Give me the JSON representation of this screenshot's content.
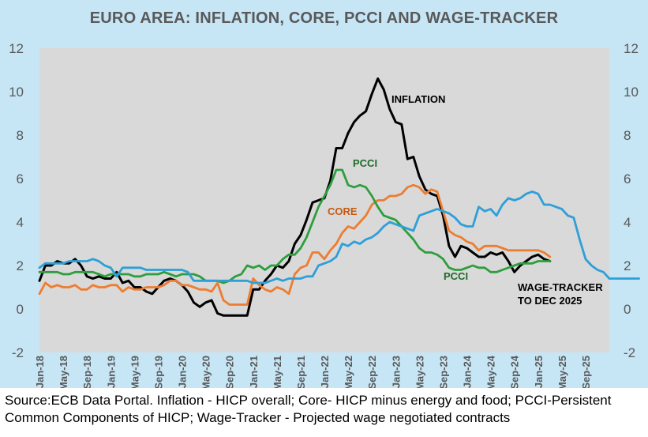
{
  "chart_data": {
    "type": "line",
    "title": "EURO AREA: INFLATION, CORE, PCCI AND WAGE-TRACKER",
    "xlabel": "",
    "ylabel": "",
    "ylim": [
      -2,
      12
    ],
    "y_ticks": [
      -2,
      0,
      2,
      4,
      6,
      8,
      10,
      12
    ],
    "y_tick_labels": [
      "-2",
      "0",
      "2",
      "4",
      "6",
      "8",
      "10",
      "12"
    ],
    "x_tick_labels": [
      "Jan-18",
      "May-18",
      "Sep-18",
      "Jan-19",
      "May-19",
      "Sep-19",
      "Jan-20",
      "May-20",
      "Sep-20",
      "Jan-21",
      "May-21",
      "Sep-21",
      "Jan-22",
      "May-22",
      "Sep-22",
      "Jan-23",
      "May-23",
      "Sep-23",
      "Jan-24",
      "May-24",
      "Sep-24",
      "Jan-25",
      "May-25",
      "Sep-25"
    ],
    "grid": false,
    "colors": {
      "inflation": "#000000",
      "core": "#ed7d31",
      "pcci": "#2e9e3e",
      "wage": "#2e9fd8",
      "plot_bg": "#d9d9d9",
      "frame_bg": "#c6e5f5",
      "title": "#595959",
      "tick": "#595959",
      "core_label": "#c55a11",
      "pcci_label": "#1e6b28"
    },
    "series": [
      {
        "name": "Inflation",
        "key": "inflation",
        "label": "INFLATION",
        "start": "Jan-18",
        "values": [
          1.3,
          2.0,
          2.0,
          2.2,
          2.1,
          2.1,
          2.3,
          2.0,
          1.5,
          1.4,
          1.5,
          1.4,
          1.4,
          1.7,
          1.2,
          1.3,
          1.0,
          1.0,
          0.8,
          0.7,
          1.0,
          1.3,
          1.4,
          1.3,
          1.1,
          0.8,
          0.3,
          0.1,
          0.3,
          0.4,
          -0.2,
          -0.3,
          -0.3,
          -0.3,
          -0.3,
          -0.3,
          0.9,
          0.9,
          1.3,
          1.6,
          2.0,
          1.9,
          2.2,
          3.0,
          3.4,
          4.1,
          4.9,
          5.0,
          5.1,
          5.9,
          7.4,
          7.4,
          8.1,
          8.6,
          8.9,
          9.1,
          9.9,
          10.6,
          10.1,
          9.2,
          8.6,
          8.5,
          6.9,
          7.0,
          6.1,
          5.5,
          5.3,
          5.2,
          4.3,
          2.9,
          2.4,
          2.9,
          2.8,
          2.6,
          2.4,
          2.4,
          2.6,
          2.5,
          2.6,
          2.2,
          1.7,
          2.0,
          2.2,
          2.4,
          2.5,
          2.3,
          2.2
        ]
      },
      {
        "name": "Core",
        "key": "core",
        "label": "CORE",
        "start": "Jan-18",
        "values": [
          0.7,
          1.2,
          1.0,
          1.1,
          1.0,
          1.0,
          1.1,
          0.9,
          0.9,
          1.1,
          1.0,
          1.0,
          1.1,
          1.1,
          0.8,
          1.0,
          0.9,
          0.9,
          1.0,
          1.0,
          1.0,
          1.1,
          1.3,
          1.3,
          1.1,
          1.1,
          1.0,
          0.9,
          0.9,
          0.8,
          1.2,
          0.4,
          0.2,
          0.2,
          0.2,
          0.2,
          1.4,
          1.1,
          0.9,
          0.8,
          1.0,
          0.9,
          0.7,
          1.6,
          1.9,
          2.0,
          2.6,
          2.6,
          2.3,
          2.7,
          3.0,
          3.5,
          3.8,
          3.7,
          4.0,
          4.3,
          4.8,
          5.0,
          5.0,
          5.2,
          5.2,
          5.3,
          5.6,
          5.7,
          5.6,
          5.3,
          5.5,
          5.4,
          4.5,
          3.6,
          3.4,
          3.3,
          3.1,
          3.0,
          2.7,
          2.9,
          2.9,
          2.9,
          2.8,
          2.7,
          2.7,
          2.7,
          2.7,
          2.7,
          2.7,
          2.6,
          2.4
        ]
      },
      {
        "name": "PCCI",
        "key": "pcci",
        "label": "PCCI",
        "start": "Jan-18",
        "values": [
          1.7,
          1.7,
          1.7,
          1.7,
          1.6,
          1.6,
          1.7,
          1.7,
          1.7,
          1.7,
          1.6,
          1.5,
          1.6,
          1.6,
          1.6,
          1.6,
          1.5,
          1.5,
          1.6,
          1.6,
          1.6,
          1.7,
          1.6,
          1.5,
          1.6,
          1.6,
          1.6,
          1.5,
          1.3,
          1.3,
          1.3,
          1.2,
          1.3,
          1.5,
          1.6,
          2.0,
          1.9,
          2.0,
          1.8,
          2.0,
          2.0,
          2.3,
          2.5,
          2.5,
          2.8,
          3.3,
          4.0,
          4.7,
          5.2,
          5.7,
          6.4,
          6.4,
          5.7,
          5.6,
          5.7,
          5.6,
          5.2,
          4.7,
          4.3,
          4.2,
          4.1,
          3.8,
          3.5,
          3.2,
          2.8,
          2.6,
          2.6,
          2.5,
          2.3,
          1.9,
          1.8,
          1.8,
          1.9,
          2.0,
          1.9,
          1.9,
          1.7,
          1.7,
          1.8,
          1.9,
          2.0,
          2.1,
          2.1,
          2.1,
          2.2,
          2.2,
          2.2
        ]
      },
      {
        "name": "Wage-Tracker",
        "key": "wage",
        "label": "WAGE-TRACKER\nTO DEC 2025",
        "start": "Jan-18",
        "values": [
          1.9,
          2.1,
          2.1,
          2.1,
          2.1,
          2.2,
          2.2,
          2.2,
          2.2,
          2.3,
          2.2,
          2.0,
          1.9,
          1.5,
          1.9,
          1.9,
          1.9,
          1.9,
          1.8,
          1.8,
          1.8,
          1.8,
          1.8,
          1.8,
          1.8,
          1.7,
          1.3,
          1.3,
          1.3,
          1.3,
          1.3,
          1.3,
          1.3,
          1.3,
          1.3,
          1.3,
          1.2,
          1.2,
          1.2,
          1.3,
          1.4,
          1.3,
          1.4,
          1.4,
          1.4,
          1.5,
          1.5,
          2.0,
          2.1,
          2.2,
          2.4,
          3.0,
          2.9,
          3.1,
          3.0,
          3.2,
          3.3,
          3.5,
          3.8,
          4.0,
          3.9,
          3.8,
          3.7,
          3.6,
          4.3,
          4.4,
          4.5,
          4.6,
          4.5,
          4.4,
          4.2,
          3.9,
          3.8,
          3.8,
          4.7,
          4.5,
          4.6,
          4.3,
          4.8,
          5.1,
          5.0,
          5.1,
          5.3,
          5.4,
          5.3,
          4.8,
          4.8,
          4.7,
          4.6,
          4.3,
          4.2,
          3.2,
          2.3,
          2.0,
          1.8,
          1.7,
          1.4,
          1.4,
          1.4,
          1.4,
          1.4,
          1.4
        ]
      }
    ]
  },
  "footer": {
    "source_note": "Source:ECB Data Portal. Inflation - HICP overall; Core- HICP minus energy and food; PCCI-Persistent Common Components of HICP; Wage-Tracker - Projected wage negotiated contracts"
  }
}
